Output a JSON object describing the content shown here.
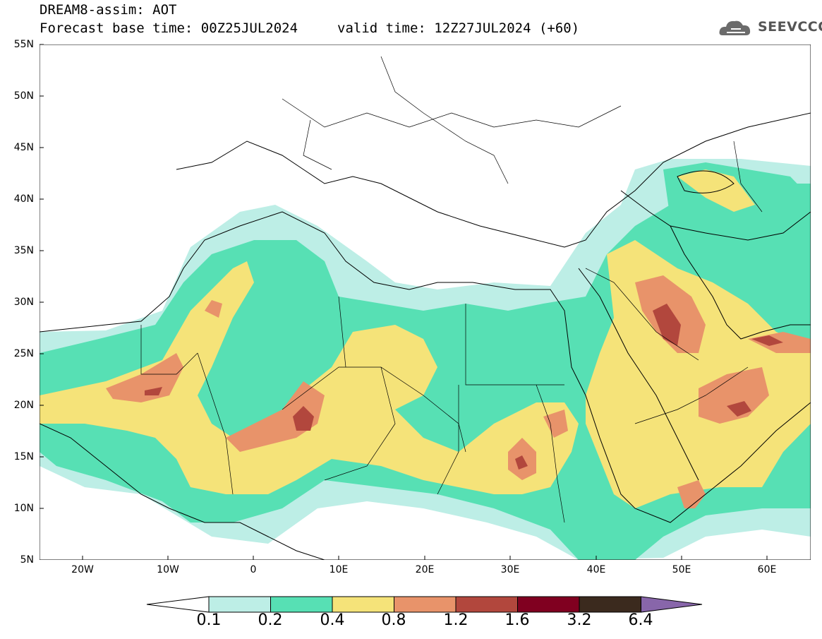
{
  "header": {
    "title_line1": "DREAM8-assim: AOT",
    "title_line2": "Forecast base time: 00Z25JUL2024",
    "valid_time": "valid time: 12Z27JUL2024 (+60)"
  },
  "logo": {
    "text": "SEEVCCC"
  },
  "map": {
    "lat_labels": [
      "55N",
      "50N",
      "45N",
      "40N",
      "35N",
      "30N",
      "25N",
      "20N",
      "15N",
      "10N",
      "5N"
    ],
    "lon_labels": [
      "20W",
      "10W",
      "0",
      "10E",
      "20E",
      "30E",
      "40E",
      "50E",
      "60E"
    ]
  },
  "colorbar": {
    "labels": [
      "0.1",
      "0.2",
      "0.4",
      "0.8",
      "1.2",
      "1.6",
      "3.2",
      "6.4"
    ],
    "colors": [
      "#ffffff",
      "#bdeee6",
      "#57e0b4",
      "#f5e379",
      "#e8936a",
      "#b2473d",
      "#800020",
      "#3b2a1e",
      "#8866aa"
    ]
  }
}
